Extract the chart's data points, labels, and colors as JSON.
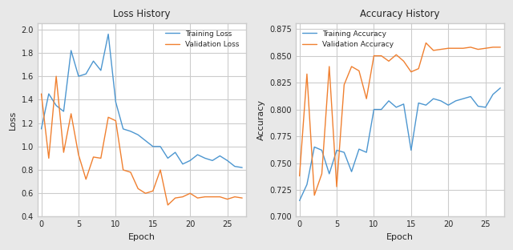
{
  "train_loss": [
    1.15,
    1.45,
    1.35,
    1.3,
    1.82,
    1.6,
    1.62,
    1.73,
    1.65,
    1.96,
    1.38,
    1.15,
    1.13,
    1.1,
    1.05,
    1.0,
    1.0,
    0.9,
    0.95,
    0.85,
    0.88,
    0.93,
    0.9,
    0.88,
    0.92,
    0.88,
    0.83,
    0.82
  ],
  "val_loss": [
    1.45,
    0.9,
    1.6,
    0.95,
    1.28,
    0.93,
    0.72,
    0.91,
    0.9,
    1.25,
    1.22,
    0.8,
    0.78,
    0.64,
    0.6,
    0.62,
    0.8,
    0.5,
    0.56,
    0.57,
    0.6,
    0.56,
    0.57,
    0.57,
    0.57,
    0.55,
    0.57,
    0.56
  ],
  "train_acc": [
    0.715,
    0.73,
    0.765,
    0.762,
    0.74,
    0.762,
    0.76,
    0.742,
    0.763,
    0.76,
    0.8,
    0.8,
    0.808,
    0.802,
    0.805,
    0.762,
    0.806,
    0.804,
    0.81,
    0.808,
    0.804,
    0.808,
    0.81,
    0.812,
    0.803,
    0.802,
    0.814,
    0.82
  ],
  "val_acc": [
    0.738,
    0.833,
    0.72,
    0.74,
    0.84,
    0.728,
    0.823,
    0.84,
    0.836,
    0.81,
    0.85,
    0.85,
    0.845,
    0.851,
    0.845,
    0.835,
    0.838,
    0.862,
    0.855,
    0.856,
    0.857,
    0.857,
    0.857,
    0.858,
    0.856,
    0.857,
    0.858,
    0.858
  ],
  "epochs": 28,
  "loss_ylim_min": 0.4,
  "loss_ylim_max": 2.05,
  "acc_ylim_min": 0.7,
  "acc_ylim_max": 0.88,
  "train_loss_color": "#4c96d0",
  "val_loss_color": "#f08030",
  "train_acc_color": "#4c96d0",
  "val_acc_color": "#f08030",
  "loss_title": "Loss History",
  "acc_title": "Accuracy History",
  "xlabel": "Epoch",
  "loss_ylabel": "Loss",
  "acc_ylabel": "Accuracy",
  "fig_facecolor": "#e8e8e8",
  "ax_facecolor": "#ffffff"
}
